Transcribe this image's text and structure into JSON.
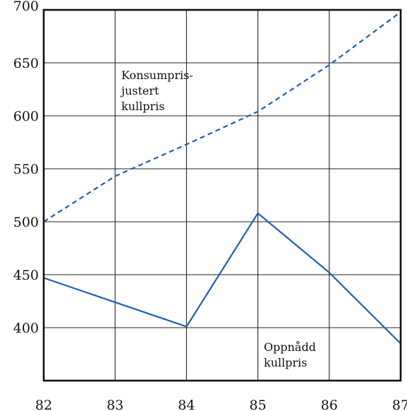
{
  "chart_data": {
    "type": "line",
    "title": "",
    "xlabel": "",
    "ylabel": "",
    "categories": [
      "82",
      "83",
      "84",
      "85",
      "86",
      "87"
    ],
    "x": [
      82,
      83,
      84,
      85,
      86,
      87
    ],
    "xlim": [
      82,
      87
    ],
    "ylim": [
      350,
      700
    ],
    "yticks": [
      400,
      450,
      500,
      550,
      600,
      650,
      700
    ],
    "grid": true,
    "series": [
      {
        "name": "Konsumpris-justert kullpris",
        "style": "dashed",
        "color": "#1f5fb0",
        "x": [
          82,
          83,
          84,
          85,
          86,
          87
        ],
        "values": [
          500,
          543,
          573,
          604,
          648,
          698
        ]
      },
      {
        "name": "Oppnådd kullpris",
        "style": "solid",
        "color": "#1f5fb0",
        "x": [
          82,
          84,
          85,
          86,
          87
        ],
        "values": [
          447,
          401,
          508,
          452,
          385
        ]
      }
    ],
    "annotations": [
      {
        "lines": [
          "Konsumpris-",
          "justert",
          "kullpris"
        ]
      },
      {
        "lines": [
          "Oppnådd",
          "kullpris"
        ]
      }
    ]
  }
}
